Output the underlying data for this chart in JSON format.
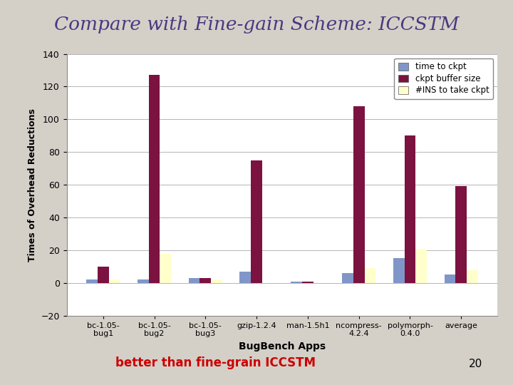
{
  "title": "Compare with Fine-gain Scheme: ICCSTM",
  "subtitle": "better than fine-grain ICCSTM",
  "subtitle_number": "20",
  "xlabel": "BugBench Apps",
  "ylabel": "Times of Overhead Reductions",
  "categories": [
    "bc-1.05-\nbug1",
    "bc-1.05-\nbug2",
    "bc-1.05-\nbug3",
    "gzip-1.2.4",
    "man-1.5h1",
    "ncompress-\n4.2.4",
    "polymorph-\n0.4.0",
    "average"
  ],
  "series": [
    {
      "name": "time to ckpt",
      "color": "#8096c8",
      "values": [
        2,
        2,
        3,
        7,
        1,
        6,
        15,
        5
      ]
    },
    {
      "name": "ckpt buffer size",
      "color": "#7b1240",
      "values": [
        10,
        127,
        3,
        75,
        1,
        108,
        90,
        59
      ]
    },
    {
      "name": "#INS to take ckpt",
      "color": "#ffffcc",
      "values": [
        2,
        18,
        2,
        0,
        0,
        9,
        21,
        8
      ]
    }
  ],
  "ylim": [
    -20,
    140
  ],
  "yticks": [
    -20,
    0,
    20,
    40,
    60,
    80,
    100,
    120,
    140
  ],
  "background_color": "#d4d0c8",
  "plot_bg_color": "#ffffff",
  "title_color": "#4b3880",
  "subtitle_color": "#cc0000",
  "legend_pos": "upper right",
  "bar_width": 0.22,
  "grid": true
}
